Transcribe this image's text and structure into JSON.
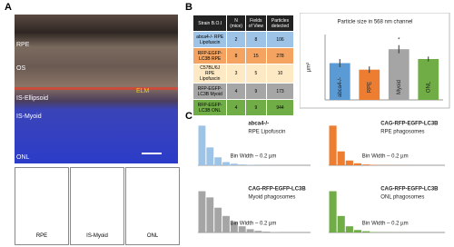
{
  "panels": {
    "a": "A",
    "b": "B",
    "c": "C"
  },
  "micrograph": {
    "layers": [
      "RPE",
      "OS",
      "IS-Ellipsoid",
      "IS-Myoid",
      "ONL"
    ],
    "marker": "ELM",
    "thumbnails": [
      "RPE",
      "IS-Myoid",
      "ONL"
    ]
  },
  "table": {
    "header": [
      "Strain B.O.I",
      "N (mice)",
      "Fields of View",
      "Particles detected"
    ],
    "row_colors": [
      "#9dc3e6",
      "#f4a460",
      "#fde9c4",
      "#a6a6a6",
      "#70ad47"
    ],
    "rows": [
      [
        "abca4-/- RPE Lipofuscin",
        "2",
        "8",
        "106"
      ],
      [
        "RFP-EGFP-LC3B RPE",
        "8",
        "15",
        "278"
      ],
      [
        "C57BL/6J RPE Lipofuscin",
        "3",
        "5",
        "10"
      ],
      [
        "RFP-EGFP-LC3B Myoid",
        "4",
        "9",
        "173"
      ],
      [
        "RFP-EGFP-LC3B ONL",
        "4",
        "9",
        "944"
      ]
    ]
  },
  "chart_data": [
    {
      "type": "bar",
      "title": "Particle size in 568 nm channel",
      "ylabel": "µm²",
      "categories": [
        "abca4-/-",
        "RPE",
        "Myoid",
        "ONL"
      ],
      "values": [
        0.45,
        0.37,
        0.62,
        0.5
      ],
      "errors": [
        0.05,
        0.04,
        0.05,
        0.03
      ],
      "colors": [
        "#5b9bd5",
        "#ed7d31",
        "#a5a5a5",
        "#70ad47"
      ],
      "annotations": [
        null,
        null,
        "*",
        null
      ],
      "ylim": [
        0,
        0.8
      ]
    },
    {
      "type": "histogram",
      "title": "abca4-/-",
      "subtitle": "RPE Lipofuscin",
      "xlabel": "Bin Width – 0.2 µm",
      "color": "#9dc3e6",
      "values": [
        100,
        45,
        20,
        8,
        4,
        2,
        1,
        0.5,
        0.3,
        0.2
      ],
      "ylim": [
        0,
        110
      ]
    },
    {
      "type": "histogram",
      "title": "CAG-RFP-EGFP-LC3B",
      "subtitle": "RPE  phagosomes",
      "xlabel": "Bin Width – 0.2 µm",
      "color": "#ed7d31",
      "values": [
        100,
        35,
        12,
        5,
        2,
        1,
        0.5,
        0.3,
        0.2,
        0.1
      ],
      "ylim": [
        0,
        110
      ]
    },
    {
      "type": "histogram",
      "title": "CAG-RFP-EGFP-LC3B",
      "subtitle": "Myoid  phagosomes",
      "xlabel": "Bin Width – 0.2 µm",
      "color": "#a5a5a5",
      "values": [
        100,
        85,
        60,
        40,
        25,
        15,
        8,
        4,
        2,
        1
      ],
      "ylim": [
        0,
        110
      ]
    },
    {
      "type": "histogram",
      "title": "CAG-RFP-EGFP-LC3B",
      "subtitle": "ONL  phagosomes",
      "xlabel": "Bin Width – 0.2 µm",
      "color": "#70ad47",
      "values": [
        100,
        40,
        15,
        6,
        3,
        1,
        0.5,
        0.3,
        0.2,
        0.1
      ],
      "ylim": [
        0,
        110
      ]
    }
  ]
}
